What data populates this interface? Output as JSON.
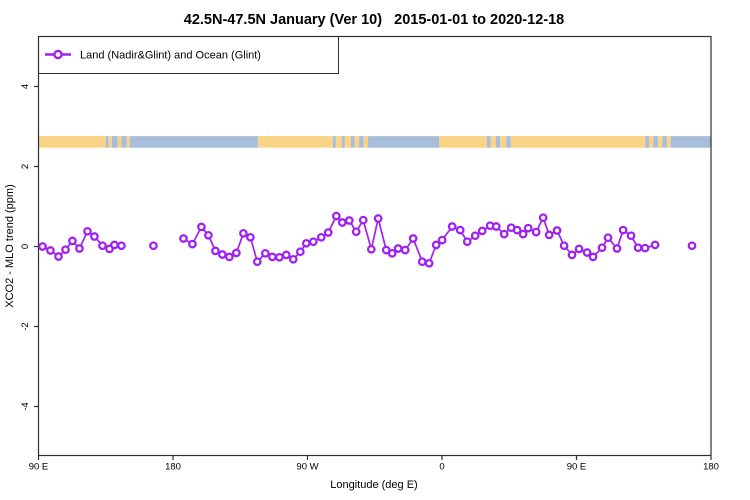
{
  "title": "42.5N-47.5N January (Ver 10)   2015-01-01 to 2020-12-18",
  "legend": {
    "label": "Land (Nadir&Glint) and Ocean (Glint)"
  },
  "axes": {
    "x": {
      "label": "Longitude (deg E)",
      "range_deg_from_left": [
        0,
        450
      ],
      "ticks": [
        {
          "pos": 0,
          "label": "90 E"
        },
        {
          "pos": 90,
          "label": "180"
        },
        {
          "pos": 180,
          "label": "90 W"
        },
        {
          "pos": 270,
          "label": "0"
        },
        {
          "pos": 360,
          "label": "90 E"
        },
        {
          "pos": 450,
          "label": "180"
        }
      ]
    },
    "y": {
      "label": "XCO2 - MLO trend (ppm)",
      "range": [
        -5.2,
        5.25
      ],
      "ticks": [
        {
          "value": -4,
          "label": "-4"
        },
        {
          "value": -2,
          "label": "-2"
        },
        {
          "value": 0,
          "label": "0"
        },
        {
          "value": 2,
          "label": "2"
        },
        {
          "value": 4,
          "label": "4"
        }
      ]
    }
  },
  "colors": {
    "series": "#A020F0",
    "land": "#FAD385",
    "ocean": "#A6BEDC",
    "frame": "#303030",
    "text": "#000000"
  },
  "map_strip": {
    "y_range_ppm": [
      2.47,
      2.76
    ],
    "segments": [
      {
        "start": 0,
        "end": 45,
        "type": "land"
      },
      {
        "start": 45,
        "end": 47,
        "type": "ocean"
      },
      {
        "start": 47,
        "end": 49,
        "type": "land"
      },
      {
        "start": 49,
        "end": 53,
        "type": "ocean"
      },
      {
        "start": 53,
        "end": 55.5,
        "type": "land"
      },
      {
        "start": 55.5,
        "end": 59,
        "type": "ocean"
      },
      {
        "start": 59,
        "end": 61,
        "type": "land"
      },
      {
        "start": 61,
        "end": 147,
        "type": "ocean"
      },
      {
        "start": 147,
        "end": 197,
        "type": "land"
      },
      {
        "start": 197,
        "end": 199,
        "type": "ocean"
      },
      {
        "start": 199,
        "end": 203,
        "type": "land"
      },
      {
        "start": 203,
        "end": 205,
        "type": "ocean"
      },
      {
        "start": 205,
        "end": 209,
        "type": "land"
      },
      {
        "start": 209,
        "end": 211.5,
        "type": "ocean"
      },
      {
        "start": 211.5,
        "end": 214.5,
        "type": "land"
      },
      {
        "start": 214.5,
        "end": 217.5,
        "type": "ocean"
      },
      {
        "start": 217.5,
        "end": 220.5,
        "type": "land"
      },
      {
        "start": 220.5,
        "end": 268,
        "type": "ocean"
      },
      {
        "start": 268,
        "end": 300,
        "type": "land"
      },
      {
        "start": 300,
        "end": 302.5,
        "type": "ocean"
      },
      {
        "start": 302.5,
        "end": 306,
        "type": "land"
      },
      {
        "start": 306,
        "end": 309,
        "type": "ocean"
      },
      {
        "start": 309,
        "end": 313,
        "type": "land"
      },
      {
        "start": 313,
        "end": 316,
        "type": "ocean"
      },
      {
        "start": 316,
        "end": 406,
        "type": "land"
      },
      {
        "start": 406,
        "end": 408.5,
        "type": "ocean"
      },
      {
        "start": 408.5,
        "end": 411.5,
        "type": "land"
      },
      {
        "start": 411.5,
        "end": 414.5,
        "type": "ocean"
      },
      {
        "start": 414.5,
        "end": 417.5,
        "type": "land"
      },
      {
        "start": 417.5,
        "end": 420.5,
        "type": "ocean"
      },
      {
        "start": 420.5,
        "end": 423,
        "type": "land"
      },
      {
        "start": 423,
        "end": 450,
        "type": "ocean"
      }
    ]
  },
  "chart_data": {
    "type": "line",
    "title": "42.5N-47.5N January (Ver 10)   2015-01-01 to 2020-12-18",
    "xlabel": "Longitude (deg E)",
    "ylabel": "XCO2 - MLO trend (ppm)",
    "x_axis_note": "x stored as degrees east of the left edge (left edge = 90E; axis spans 90E -> 180 -> 90W -> 0 -> 90E -> 180)",
    "xlim_deg_from_left": [
      0,
      450
    ],
    "ylim": [
      -5.2,
      5.25
    ],
    "grid": false,
    "legend_position": "top-left",
    "series": [
      {
        "name": "Land (Nadir&Glint) and Ocean (Glint)",
        "marker": "open-circle",
        "points": [
          [
            2.7,
            0.0
          ],
          [
            8.0,
            -0.1
          ],
          [
            13.4,
            -0.25
          ],
          [
            18.1,
            -0.08
          ],
          [
            22.7,
            0.14
          ],
          [
            27.4,
            -0.05
          ],
          [
            32.8,
            0.38
          ],
          [
            37.4,
            0.25
          ],
          [
            42.8,
            0.02
          ],
          [
            47.5,
            -0.06
          ],
          [
            50.8,
            0.04
          ],
          [
            55.5,
            0.02
          ],
          [
            76.9,
            0.02
          ],
          [
            97.0,
            0.2
          ],
          [
            103.0,
            0.06
          ],
          [
            109.0,
            0.49
          ],
          [
            113.7,
            0.28
          ],
          [
            118.4,
            -0.11
          ],
          [
            123.0,
            -0.2
          ],
          [
            127.7,
            -0.26
          ],
          [
            132.4,
            -0.16
          ],
          [
            137.1,
            0.33
          ],
          [
            141.8,
            0.23
          ],
          [
            146.4,
            -0.38
          ],
          [
            151.8,
            -0.17
          ],
          [
            156.5,
            -0.26
          ],
          [
            161.2,
            -0.27
          ],
          [
            165.8,
            -0.21
          ],
          [
            170.5,
            -0.32
          ],
          [
            175.2,
            -0.13
          ],
          [
            179.2,
            0.08
          ],
          [
            183.9,
            0.12
          ],
          [
            189.2,
            0.23
          ],
          [
            193.9,
            0.35
          ],
          [
            199.3,
            0.76
          ],
          [
            203.3,
            0.6
          ],
          [
            208.0,
            0.65
          ],
          [
            212.6,
            0.37
          ],
          [
            217.3,
            0.66
          ],
          [
            222.7,
            -0.07
          ],
          [
            227.3,
            0.7
          ],
          [
            232.7,
            -0.09
          ],
          [
            236.7,
            -0.17
          ],
          [
            240.7,
            -0.05
          ],
          [
            245.4,
            -0.09
          ],
          [
            250.7,
            0.2
          ],
          [
            256.8,
            -0.38
          ],
          [
            261.4,
            -0.42
          ],
          [
            266.1,
            0.04
          ],
          [
            270.1,
            0.16
          ],
          [
            276.8,
            0.5
          ],
          [
            282.2,
            0.41
          ],
          [
            286.9,
            0.12
          ],
          [
            292.2,
            0.27
          ],
          [
            296.9,
            0.39
          ],
          [
            302.2,
            0.52
          ],
          [
            306.3,
            0.5
          ],
          [
            311.6,
            0.31
          ],
          [
            316.3,
            0.47
          ],
          [
            320.3,
            0.41
          ],
          [
            324.3,
            0.31
          ],
          [
            327.7,
            0.46
          ],
          [
            333.0,
            0.36
          ],
          [
            337.7,
            0.72
          ],
          [
            341.7,
            0.29
          ],
          [
            347.0,
            0.4
          ],
          [
            351.7,
            0.02
          ],
          [
            357.0,
            -0.21
          ],
          [
            361.7,
            -0.06
          ],
          [
            367.1,
            -0.15
          ],
          [
            371.1,
            -0.26
          ],
          [
            377.1,
            -0.03
          ],
          [
            381.1,
            0.22
          ],
          [
            387.1,
            -0.05
          ],
          [
            391.2,
            0.41
          ],
          [
            396.5,
            0.27
          ],
          [
            401.2,
            -0.03
          ],
          [
            405.9,
            -0.04
          ],
          [
            412.6,
            0.04
          ],
          [
            437.3,
            0.02
          ]
        ]
      }
    ]
  }
}
